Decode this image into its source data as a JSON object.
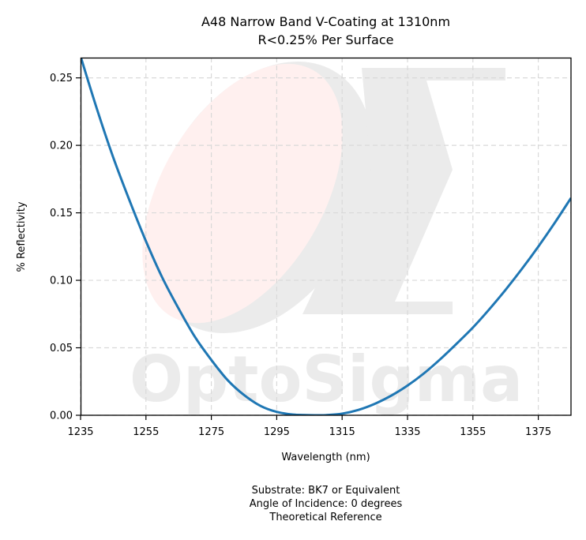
{
  "chart_data": {
    "type": "line",
    "title": "A48 Narrow Band V-Coating at 1310nm",
    "subtitle": "R<0.25% Per Surface",
    "xlabel": "Wavelength (nm)",
    "ylabel": "% Reflectivity",
    "xlim": [
      1235,
      1385
    ],
    "ylim": [
      0,
      0.265
    ],
    "xticks": [
      1235,
      1255,
      1275,
      1295,
      1315,
      1335,
      1355,
      1375
    ],
    "yticks": [
      0.0,
      0.05,
      0.1,
      0.15,
      0.2,
      0.25
    ],
    "ytick_labels": [
      "0.00",
      "0.05",
      "0.10",
      "0.15",
      "0.20",
      "0.25"
    ],
    "grid": true,
    "grid_style": "dashed",
    "series": [
      {
        "color": "#1f77b4",
        "x": [
          1235,
          1240,
          1245,
          1250,
          1255,
          1260,
          1265,
          1270,
          1275,
          1280,
          1285,
          1290,
          1295,
          1300,
          1305,
          1308,
          1310,
          1315,
          1320,
          1325,
          1330,
          1335,
          1340,
          1345,
          1350,
          1355,
          1360,
          1365,
          1370,
          1375,
          1380,
          1385
        ],
        "y": [
          0.266,
          0.227,
          0.191,
          0.159,
          0.129,
          0.102,
          0.079,
          0.058,
          0.041,
          0.026,
          0.015,
          0.007,
          0.0025,
          0.0005,
          0.0001,
          0.0,
          0.0001,
          0.0012,
          0.004,
          0.0085,
          0.0145,
          0.022,
          0.031,
          0.0415,
          0.053,
          0.065,
          0.0785,
          0.093,
          0.1085,
          0.125,
          0.1425,
          0.161
        ]
      }
    ],
    "watermark_text": "OptoSigma",
    "annotations": [
      "Substrate: BK7 or Equivalent",
      "Angle of Incidence: 0 degrees",
      "Theoretical Reference"
    ]
  }
}
